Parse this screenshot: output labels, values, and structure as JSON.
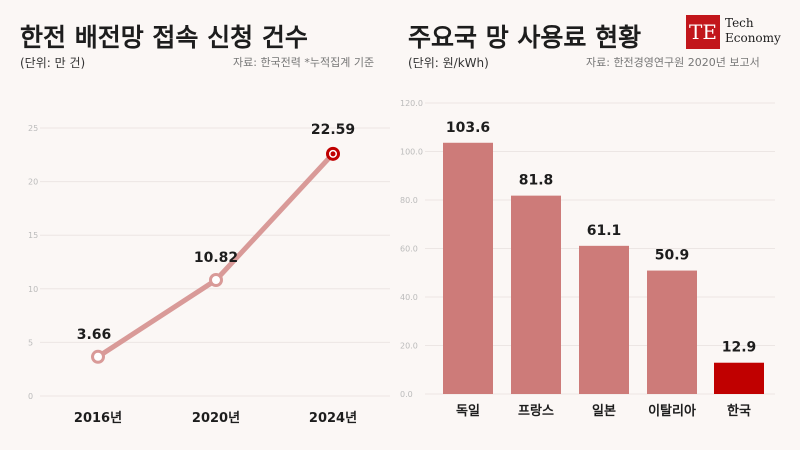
{
  "colors": {
    "line": "#d99a98",
    "bar": "#cd7b79",
    "highlight": "#c00000",
    "accent_label": "#c00000",
    "brand": "#c2161b"
  },
  "logo": {
    "mark": "TE",
    "line1": "Tech",
    "line2": "Economy"
  },
  "chart_data": [
    {
      "type": "line",
      "title": "한전 배전망 접속 신청 건수",
      "unit_note": "(단위: 만 건)",
      "source": "자료: 한국전력 *누적집계 기준",
      "categories": [
        "2016년",
        "2020년",
        "2024년"
      ],
      "values": [
        3.66,
        10.82,
        22.59
      ],
      "value_labels": [
        "3.66",
        "10.82",
        "22.59"
      ],
      "highlight_index": 2,
      "yticks": [
        "0",
        "5",
        "10",
        "15",
        "20",
        "25"
      ],
      "ylim": [
        0,
        25
      ],
      "grid": true
    },
    {
      "type": "bar",
      "title": "주요국 망 사용료 현황",
      "unit_note": "(단위: 원/kWh)",
      "source": "자료: 한전경영연구원 2020년 보고서",
      "categories": [
        "독일",
        "프랑스",
        "일본",
        "이탈리아",
        "한국"
      ],
      "values": [
        103.6,
        81.8,
        61.1,
        50.9,
        12.9
      ],
      "value_labels": [
        "103.6",
        "81.8",
        "61.1",
        "50.9",
        "12.9"
      ],
      "highlight_index": 4,
      "yticks": [
        "0.0",
        "20.0",
        "40.0",
        "60.0",
        "80.0",
        "100.0",
        "120.0"
      ],
      "ylim": [
        0,
        120
      ],
      "grid": true
    }
  ]
}
